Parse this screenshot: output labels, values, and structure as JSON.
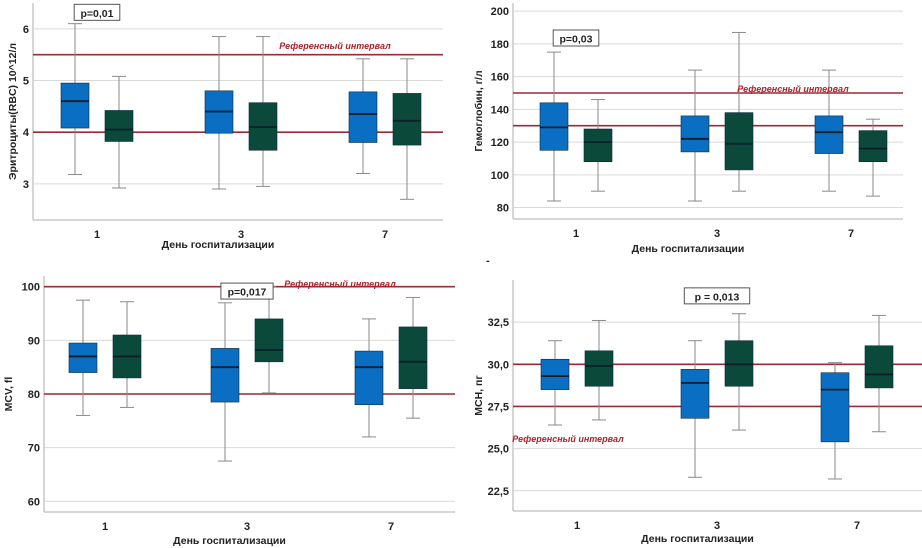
{
  "figure": {
    "colors": {
      "series_day_blue": "#0a6fc2",
      "series_day_green": "#0b4a3a",
      "reference_line": "#9c2a36",
      "grid": "#d9d9d9",
      "whisker": "#8a8a8a",
      "axis": "#c8c8c8"
    },
    "stray_mark": "-"
  },
  "chart_data": [
    {
      "type": "boxplot",
      "id": "rbc",
      "ylabel": "Эритроциты(RBC) 10^12/л",
      "xlabel": "День госпитализации",
      "categories": [
        "1",
        "3",
        "7"
      ],
      "ylim": [
        2.3,
        6.5
      ],
      "yticks": [
        3,
        4,
        5,
        6
      ],
      "ytick_labels": [
        "3",
        "4",
        "5",
        "6"
      ],
      "grid": true,
      "reference_lines": [
        4.0,
        5.5
      ],
      "reference_label": "Референсный интервал",
      "reference_label_pos": "top-center",
      "annotation": {
        "text": "p=0,01",
        "category": "1",
        "y": 6.3
      },
      "series": [
        {
          "name": "blue",
          "boxes": [
            {
              "whisker_low": 3.18,
              "q1": 4.08,
              "median": 4.6,
              "q3": 4.95,
              "whisker_high": 6.1
            },
            {
              "whisker_low": 2.9,
              "q1": 3.98,
              "median": 4.4,
              "q3": 4.8,
              "whisker_high": 5.85
            },
            {
              "whisker_low": 3.2,
              "q1": 3.8,
              "median": 4.35,
              "q3": 4.78,
              "whisker_high": 5.42
            }
          ]
        },
        {
          "name": "green",
          "boxes": [
            {
              "whisker_low": 2.92,
              "q1": 3.82,
              "median": 4.05,
              "q3": 4.42,
              "whisker_high": 5.08
            },
            {
              "whisker_low": 2.95,
              "q1": 3.65,
              "median": 4.1,
              "q3": 4.57,
              "whisker_high": 5.85
            },
            {
              "whisker_low": 2.7,
              "q1": 3.75,
              "median": 4.22,
              "q3": 4.75,
              "whisker_high": 5.42
            }
          ]
        }
      ]
    },
    {
      "type": "boxplot",
      "id": "hb",
      "ylabel": "Гемоглобин, г/л",
      "xlabel": "День госпитализации",
      "categories": [
        "1",
        "3",
        "7"
      ],
      "ylim": [
        73,
        205
      ],
      "yticks": [
        80,
        100,
        120,
        140,
        160,
        180,
        200
      ],
      "ytick_labels": [
        "80",
        "100",
        "120",
        "140",
        "160",
        "180",
        "200"
      ],
      "grid": true,
      "reference_lines": [
        130,
        150
      ],
      "reference_label": "Референсный интервал",
      "reference_label_pos": "right",
      "annotation": {
        "text": "p=0,03",
        "category": "1",
        "y": 183
      },
      "series": [
        {
          "name": "blue",
          "boxes": [
            {
              "whisker_low": 84,
              "q1": 115,
              "median": 129,
              "q3": 144,
              "whisker_high": 175
            },
            {
              "whisker_low": 84,
              "q1": 114,
              "median": 122,
              "q3": 136,
              "whisker_high": 164
            },
            {
              "whisker_low": 90,
              "q1": 113,
              "median": 126,
              "q3": 136,
              "whisker_high": 164
            }
          ]
        },
        {
          "name": "green",
          "boxes": [
            {
              "whisker_low": 90,
              "q1": 108,
              "median": 120,
              "q3": 128,
              "whisker_high": 146
            },
            {
              "whisker_low": 90,
              "q1": 103,
              "median": 119,
              "q3": 138,
              "whisker_high": 187
            },
            {
              "whisker_low": 87,
              "q1": 108,
              "median": 116,
              "q3": 127,
              "whisker_high": 134
            }
          ]
        }
      ]
    },
    {
      "type": "boxplot",
      "id": "mcv",
      "ylabel": "MCV, fl",
      "xlabel": "День госпитализации",
      "categories": [
        "1",
        "3",
        "7"
      ],
      "ylim": [
        58,
        102
      ],
      "yticks": [
        60,
        70,
        80,
        90,
        100
      ],
      "ytick_labels": [
        "60",
        "70",
        "80",
        "90",
        "100"
      ],
      "grid": true,
      "reference_lines": [
        80,
        100
      ],
      "reference_label": "Референсный интервал",
      "reference_label_pos": "top-center",
      "annotation": {
        "text": "p=0,017",
        "category": "3",
        "y": 99
      },
      "series": [
        {
          "name": "blue",
          "boxes": [
            {
              "whisker_low": 76,
              "q1": 84,
              "median": 87,
              "q3": 89.5,
              "whisker_high": 97.5
            },
            {
              "whisker_low": 67.5,
              "q1": 78.5,
              "median": 85,
              "q3": 88.5,
              "whisker_high": 97
            },
            {
              "whisker_low": 72,
              "q1": 78,
              "median": 85,
              "q3": 88,
              "whisker_high": 94
            }
          ]
        },
        {
          "name": "green",
          "boxes": [
            {
              "whisker_low": 77.5,
              "q1": 83,
              "median": 87,
              "q3": 91,
              "whisker_high": 97.2
            },
            {
              "whisker_low": 80.2,
              "q1": 86,
              "median": 88.2,
              "q3": 94,
              "whisker_high": 100
            },
            {
              "whisker_low": 75.5,
              "q1": 81,
              "median": 86,
              "q3": 92.5,
              "whisker_high": 98
            }
          ]
        }
      ]
    },
    {
      "type": "boxplot",
      "id": "mch",
      "ylabel": "MCH, пг",
      "xlabel": "День госпитализации",
      "categories": [
        "1",
        "3",
        "7"
      ],
      "ylim": [
        21.3,
        35.0
      ],
      "yticks": [
        22.5,
        25.0,
        27.5,
        30.0,
        32.5
      ],
      "ytick_labels": [
        "22,5",
        "25,0",
        "27,5",
        "30,0",
        "32,5"
      ],
      "grid": true,
      "reference_lines": [
        27.5,
        30.0
      ],
      "reference_label": "Референсный интервал",
      "reference_label_pos": "left",
      "annotation": {
        "text": "p = 0,013",
        "category": "3",
        "y": 34.0
      },
      "series": [
        {
          "name": "blue",
          "boxes": [
            {
              "whisker_low": 26.4,
              "q1": 28.5,
              "median": 29.3,
              "q3": 30.3,
              "whisker_high": 31.4
            },
            {
              "whisker_low": 23.3,
              "q1": 26.8,
              "median": 28.9,
              "q3": 29.7,
              "whisker_high": 31.4
            },
            {
              "whisker_low": 23.2,
              "q1": 25.4,
              "median": 28.5,
              "q3": 29.5,
              "whisker_high": 30.1
            }
          ]
        },
        {
          "name": "green",
          "boxes": [
            {
              "whisker_low": 26.7,
              "q1": 28.7,
              "median": 29.9,
              "q3": 30.8,
              "whisker_high": 32.6
            },
            {
              "whisker_low": 26.1,
              "q1": 28.7,
              "median": 30.0,
              "q3": 31.4,
              "whisker_high": 33.0
            },
            {
              "whisker_low": 26.0,
              "q1": 28.6,
              "median": 29.4,
              "q3": 31.1,
              "whisker_high": 32.9
            }
          ]
        }
      ]
    }
  ]
}
